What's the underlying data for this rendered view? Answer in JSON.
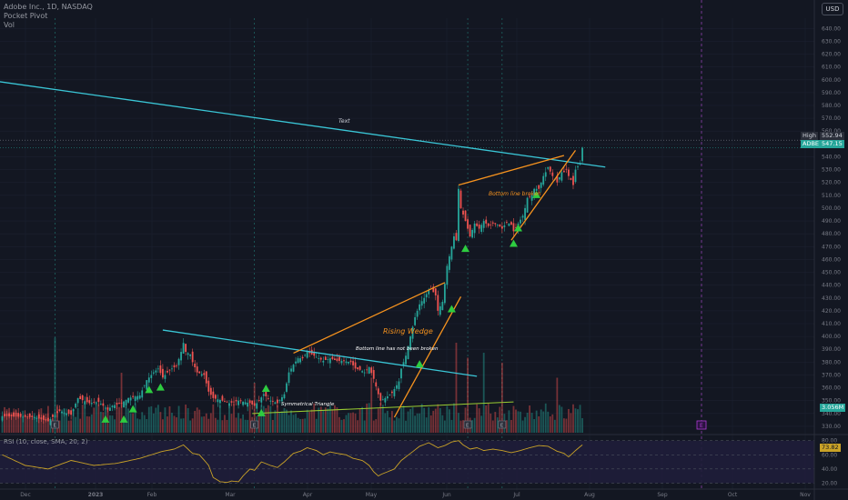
{
  "header": {
    "symbol": "Adobe Inc., 1D, NASDAQ",
    "indicator1": "Pocket Pivot",
    "indicator2": "Vol",
    "currency_button": "USD"
  },
  "price_tags": {
    "high_label": "High",
    "high_value": "552.94",
    "last_label": "ADBE",
    "last_value": "547.15",
    "vol_value": "3.056M",
    "rsi_value": "73.82"
  },
  "annotations": {
    "text_note": "Text",
    "bottom_broken": "Bottom line broken",
    "rising_wedge": "Rising Wedge",
    "bottom_not_broken": "Bottom line has not been broken",
    "sym_triangle": "Symmetrical Triangle",
    "earnings_marker": "E",
    "future_marker": "E"
  },
  "rsi_legend": "RSI (10, close, SMA, 20, 2)",
  "colors": {
    "background": "#131722",
    "up": "#26a69a",
    "down": "#ef5350",
    "trendline": "#3ac6d6",
    "wedge": "#f7931e",
    "arrow": "#2ecc40",
    "rsi": "#c9a227",
    "rsi_band": "#1f1d3a"
  },
  "chart_data": {
    "type": "candlestick",
    "x_ticks": [
      "Dec",
      "2023",
      "Feb",
      "Mar",
      "Apr",
      "May",
      "Jun",
      "Jul",
      "Aug",
      "Sep",
      "Oct",
      "Nov"
    ],
    "y_ticks": [
      330,
      340,
      350,
      360,
      370,
      380,
      390,
      400,
      410,
      420,
      430,
      440,
      450,
      460,
      470,
      480,
      490,
      500,
      510,
      520,
      530,
      540,
      550,
      560,
      570,
      580,
      590,
      600,
      610,
      620,
      630,
      640
    ],
    "ylim": [
      325,
      648
    ],
    "rsi_ticks": [
      20,
      40,
      60,
      80
    ],
    "rsi_ylim": [
      18,
      86
    ],
    "candle_anchors": [
      [
        0,
        338
      ],
      [
        14,
        337
      ],
      [
        20,
        334
      ],
      [
        25,
        342
      ],
      [
        30,
        339
      ],
      [
        33,
        352
      ],
      [
        38,
        348
      ],
      [
        42,
        349
      ],
      [
        46,
        343
      ],
      [
        48,
        346
      ],
      [
        52,
        348
      ],
      [
        55,
        352
      ],
      [
        60,
        354
      ],
      [
        63,
        366
      ],
      [
        66,
        372
      ],
      [
        68,
        375
      ],
      [
        70,
        368
      ],
      [
        72,
        372
      ],
      [
        74,
        375
      ],
      [
        76,
        377
      ],
      [
        78,
        388
      ],
      [
        79,
        395
      ],
      [
        80,
        388
      ],
      [
        82,
        386
      ],
      [
        83,
        380
      ],
      [
        85,
        372
      ],
      [
        88,
        370
      ],
      [
        90,
        357
      ],
      [
        92,
        352
      ],
      [
        96,
        350
      ],
      [
        99,
        348
      ],
      [
        103,
        350
      ],
      [
        108,
        348
      ],
      [
        110,
        346
      ],
      [
        112,
        350
      ],
      [
        114,
        355
      ],
      [
        117,
        350
      ],
      [
        120,
        348
      ],
      [
        123,
        355
      ],
      [
        125,
        372
      ],
      [
        127,
        378
      ],
      [
        129,
        383
      ],
      [
        131,
        383
      ],
      [
        133,
        388
      ],
      [
        135,
        386
      ],
      [
        137,
        384
      ],
      [
        140,
        381
      ],
      [
        143,
        383
      ],
      [
        146,
        381
      ],
      [
        148,
        381
      ],
      [
        152,
        380
      ],
      [
        154,
        375
      ],
      [
        156,
        374
      ],
      [
        158,
        372
      ],
      [
        160,
        376
      ],
      [
        162,
        367
      ],
      [
        164,
        355
      ],
      [
        165,
        350
      ],
      [
        167,
        352
      ],
      [
        170,
        356
      ],
      [
        173,
        365
      ],
      [
        174,
        375
      ],
      [
        176,
        385
      ],
      [
        178,
        400
      ],
      [
        180,
        415
      ],
      [
        182,
        425
      ],
      [
        184,
        430
      ],
      [
        186,
        436
      ],
      [
        187,
        437
      ],
      [
        189,
        432
      ],
      [
        190,
        420
      ],
      [
        192,
        427
      ],
      [
        194,
        455
      ],
      [
        196,
        470
      ],
      [
        197,
        478
      ],
      [
        198,
        475
      ],
      [
        199,
        515
      ],
      [
        200,
        500
      ],
      [
        202,
        490
      ],
      [
        204,
        478
      ],
      [
        206,
        488
      ],
      [
        208,
        484
      ],
      [
        210,
        490
      ],
      [
        212,
        486
      ],
      [
        214,
        488
      ],
      [
        216,
        487
      ],
      [
        218,
        484
      ],
      [
        220,
        489
      ],
      [
        222,
        487
      ],
      [
        223,
        482
      ],
      [
        225,
        488
      ],
      [
        227,
        494
      ],
      [
        228,
        500
      ],
      [
        229,
        508
      ],
      [
        231,
        510
      ],
      [
        232,
        515
      ],
      [
        234,
        515
      ],
      [
        236,
        525
      ],
      [
        237,
        528
      ],
      [
        238,
        532
      ],
      [
        240,
        525
      ],
      [
        242,
        520
      ],
      [
        244,
        528
      ],
      [
        245,
        528
      ],
      [
        246,
        530
      ],
      [
        247,
        525
      ],
      [
        248,
        522
      ],
      [
        249,
        518
      ],
      [
        250,
        530
      ],
      [
        252,
        535
      ],
      [
        253,
        547
      ]
    ],
    "rsi_anchors": [
      [
        0,
        60
      ],
      [
        10,
        45
      ],
      [
        20,
        40
      ],
      [
        30,
        52
      ],
      [
        40,
        45
      ],
      [
        50,
        48
      ],
      [
        60,
        55
      ],
      [
        70,
        65
      ],
      [
        75,
        68
      ],
      [
        79,
        74
      ],
      [
        83,
        62
      ],
      [
        86,
        60
      ],
      [
        90,
        45
      ],
      [
        92,
        28
      ],
      [
        95,
        22
      ],
      [
        98,
        21
      ],
      [
        100,
        23
      ],
      [
        103,
        22
      ],
      [
        105,
        30
      ],
      [
        108,
        40
      ],
      [
        110,
        38
      ],
      [
        113,
        50
      ],
      [
        117,
        45
      ],
      [
        120,
        42
      ],
      [
        123,
        50
      ],
      [
        127,
        62
      ],
      [
        130,
        65
      ],
      [
        133,
        70
      ],
      [
        137,
        66
      ],
      [
        140,
        60
      ],
      [
        143,
        64
      ],
      [
        146,
        62
      ],
      [
        150,
        60
      ],
      [
        153,
        55
      ],
      [
        157,
        52
      ],
      [
        160,
        45
      ],
      [
        162,
        36
      ],
      [
        164,
        30
      ],
      [
        165,
        32
      ],
      [
        168,
        36
      ],
      [
        171,
        40
      ],
      [
        174,
        52
      ],
      [
        178,
        62
      ],
      [
        182,
        72
      ],
      [
        186,
        77
      ],
      [
        190,
        70
      ],
      [
        193,
        73
      ],
      [
        196,
        78
      ],
      [
        199,
        80
      ],
      [
        201,
        74
      ],
      [
        204,
        68
      ],
      [
        207,
        70
      ],
      [
        210,
        66
      ],
      [
        214,
        68
      ],
      [
        218,
        66
      ],
      [
        222,
        63
      ],
      [
        226,
        66
      ],
      [
        230,
        70
      ],
      [
        234,
        73
      ],
      [
        238,
        72
      ],
      [
        242,
        65
      ],
      [
        245,
        62
      ],
      [
        247,
        57
      ],
      [
        250,
        66
      ],
      [
        253,
        74
      ]
    ],
    "trendlines": [
      {
        "name": "long-falling-line",
        "type": "trend",
        "points": [
          [
            -19,
            603
          ],
          [
            263,
            532
          ]
        ]
      },
      {
        "name": "triangle-upper",
        "type": "trend",
        "points": [
          [
            70,
            405
          ],
          [
            207,
            369
          ]
        ]
      },
      {
        "name": "triangle-lower",
        "type": "support",
        "points": [
          [
            109,
            340
          ],
          [
            223,
            349
          ]
        ]
      },
      {
        "name": "wedge-upper",
        "type": "wedge",
        "points": [
          [
            127,
            387
          ],
          [
            193,
            442
          ]
        ]
      },
      {
        "name": "wedge-lower",
        "type": "wedge",
        "points": [
          [
            171,
            337
          ],
          [
            200,
            431
          ]
        ]
      },
      {
        "name": "recent-wedge-upper",
        "type": "wedge",
        "points": [
          [
            199,
            518
          ],
          [
            245,
            541
          ]
        ]
      },
      {
        "name": "recent-wedge-lower",
        "type": "wedge",
        "points": [
          [
            222,
            475
          ],
          [
            250,
            545
          ]
        ]
      }
    ],
    "pocket_pivots": [
      [
        45,
        335
      ],
      [
        53,
        335
      ],
      [
        57,
        343
      ],
      [
        64,
        358
      ],
      [
        69,
        360
      ],
      [
        113,
        340
      ],
      [
        115,
        359
      ],
      [
        182,
        378
      ],
      [
        196,
        421
      ],
      [
        202,
        468
      ],
      [
        223,
        472
      ],
      [
        225,
        484
      ],
      [
        233,
        510
      ]
    ],
    "earnings_days": [
      23,
      110,
      203,
      218
    ]
  }
}
